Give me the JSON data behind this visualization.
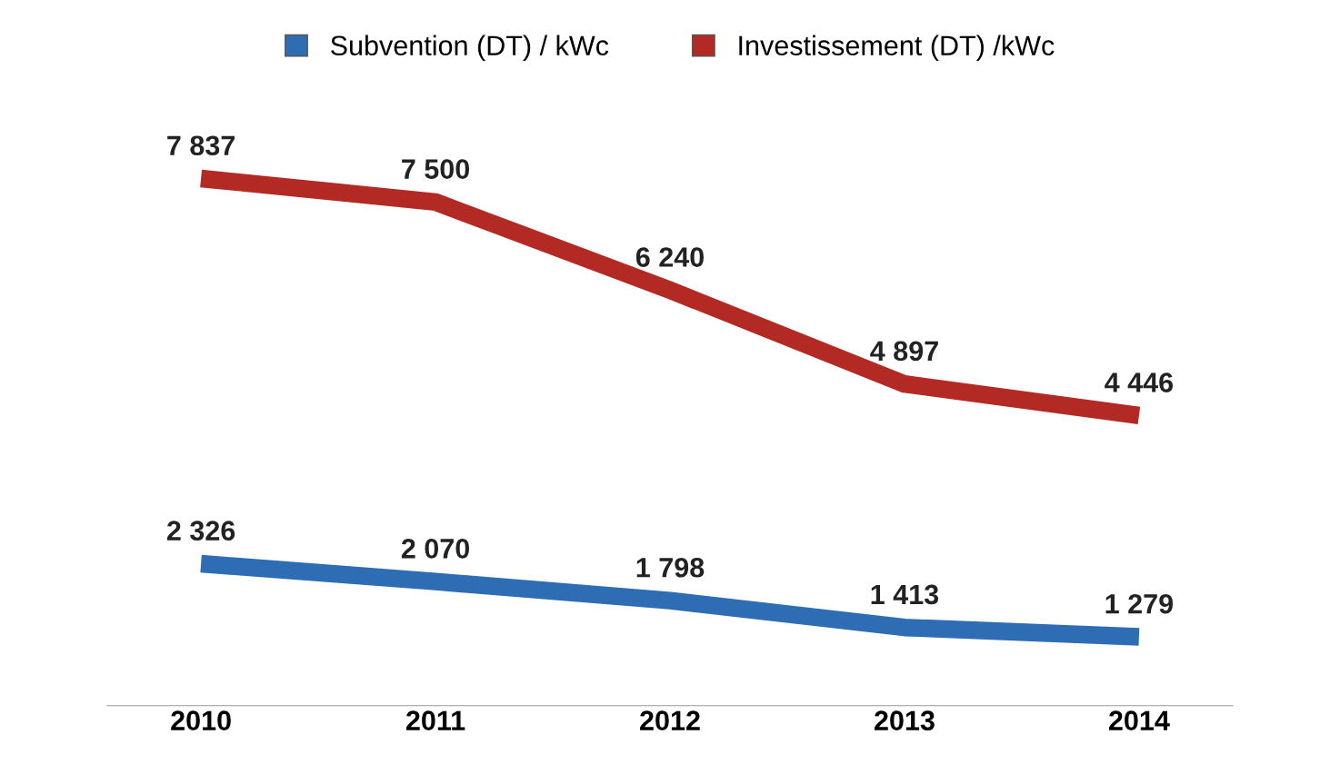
{
  "chart_data": {
    "type": "line",
    "categories": [
      "2010",
      "2011",
      "2012",
      "2013",
      "2014"
    ],
    "series": [
      {
        "name": "Subvention (DT) / kWc",
        "color": "#2e6db4",
        "values": [
          2326,
          2070,
          1798,
          1413,
          1279
        ],
        "value_labels": [
          "2 326",
          "2 070",
          "1 798",
          "1 413",
          "1 279"
        ]
      },
      {
        "name": "Investissement (DT) /kWc",
        "color": "#b32a25",
        "values": [
          7837,
          7500,
          6240,
          4897,
          4446
        ],
        "value_labels": [
          "7 837",
          "7 500",
          "6 240",
          "4 897",
          "4 446"
        ]
      }
    ],
    "legend": "top",
    "tick_labels": "x",
    "grid": false,
    "marker": "none",
    "line_style": "solid"
  }
}
